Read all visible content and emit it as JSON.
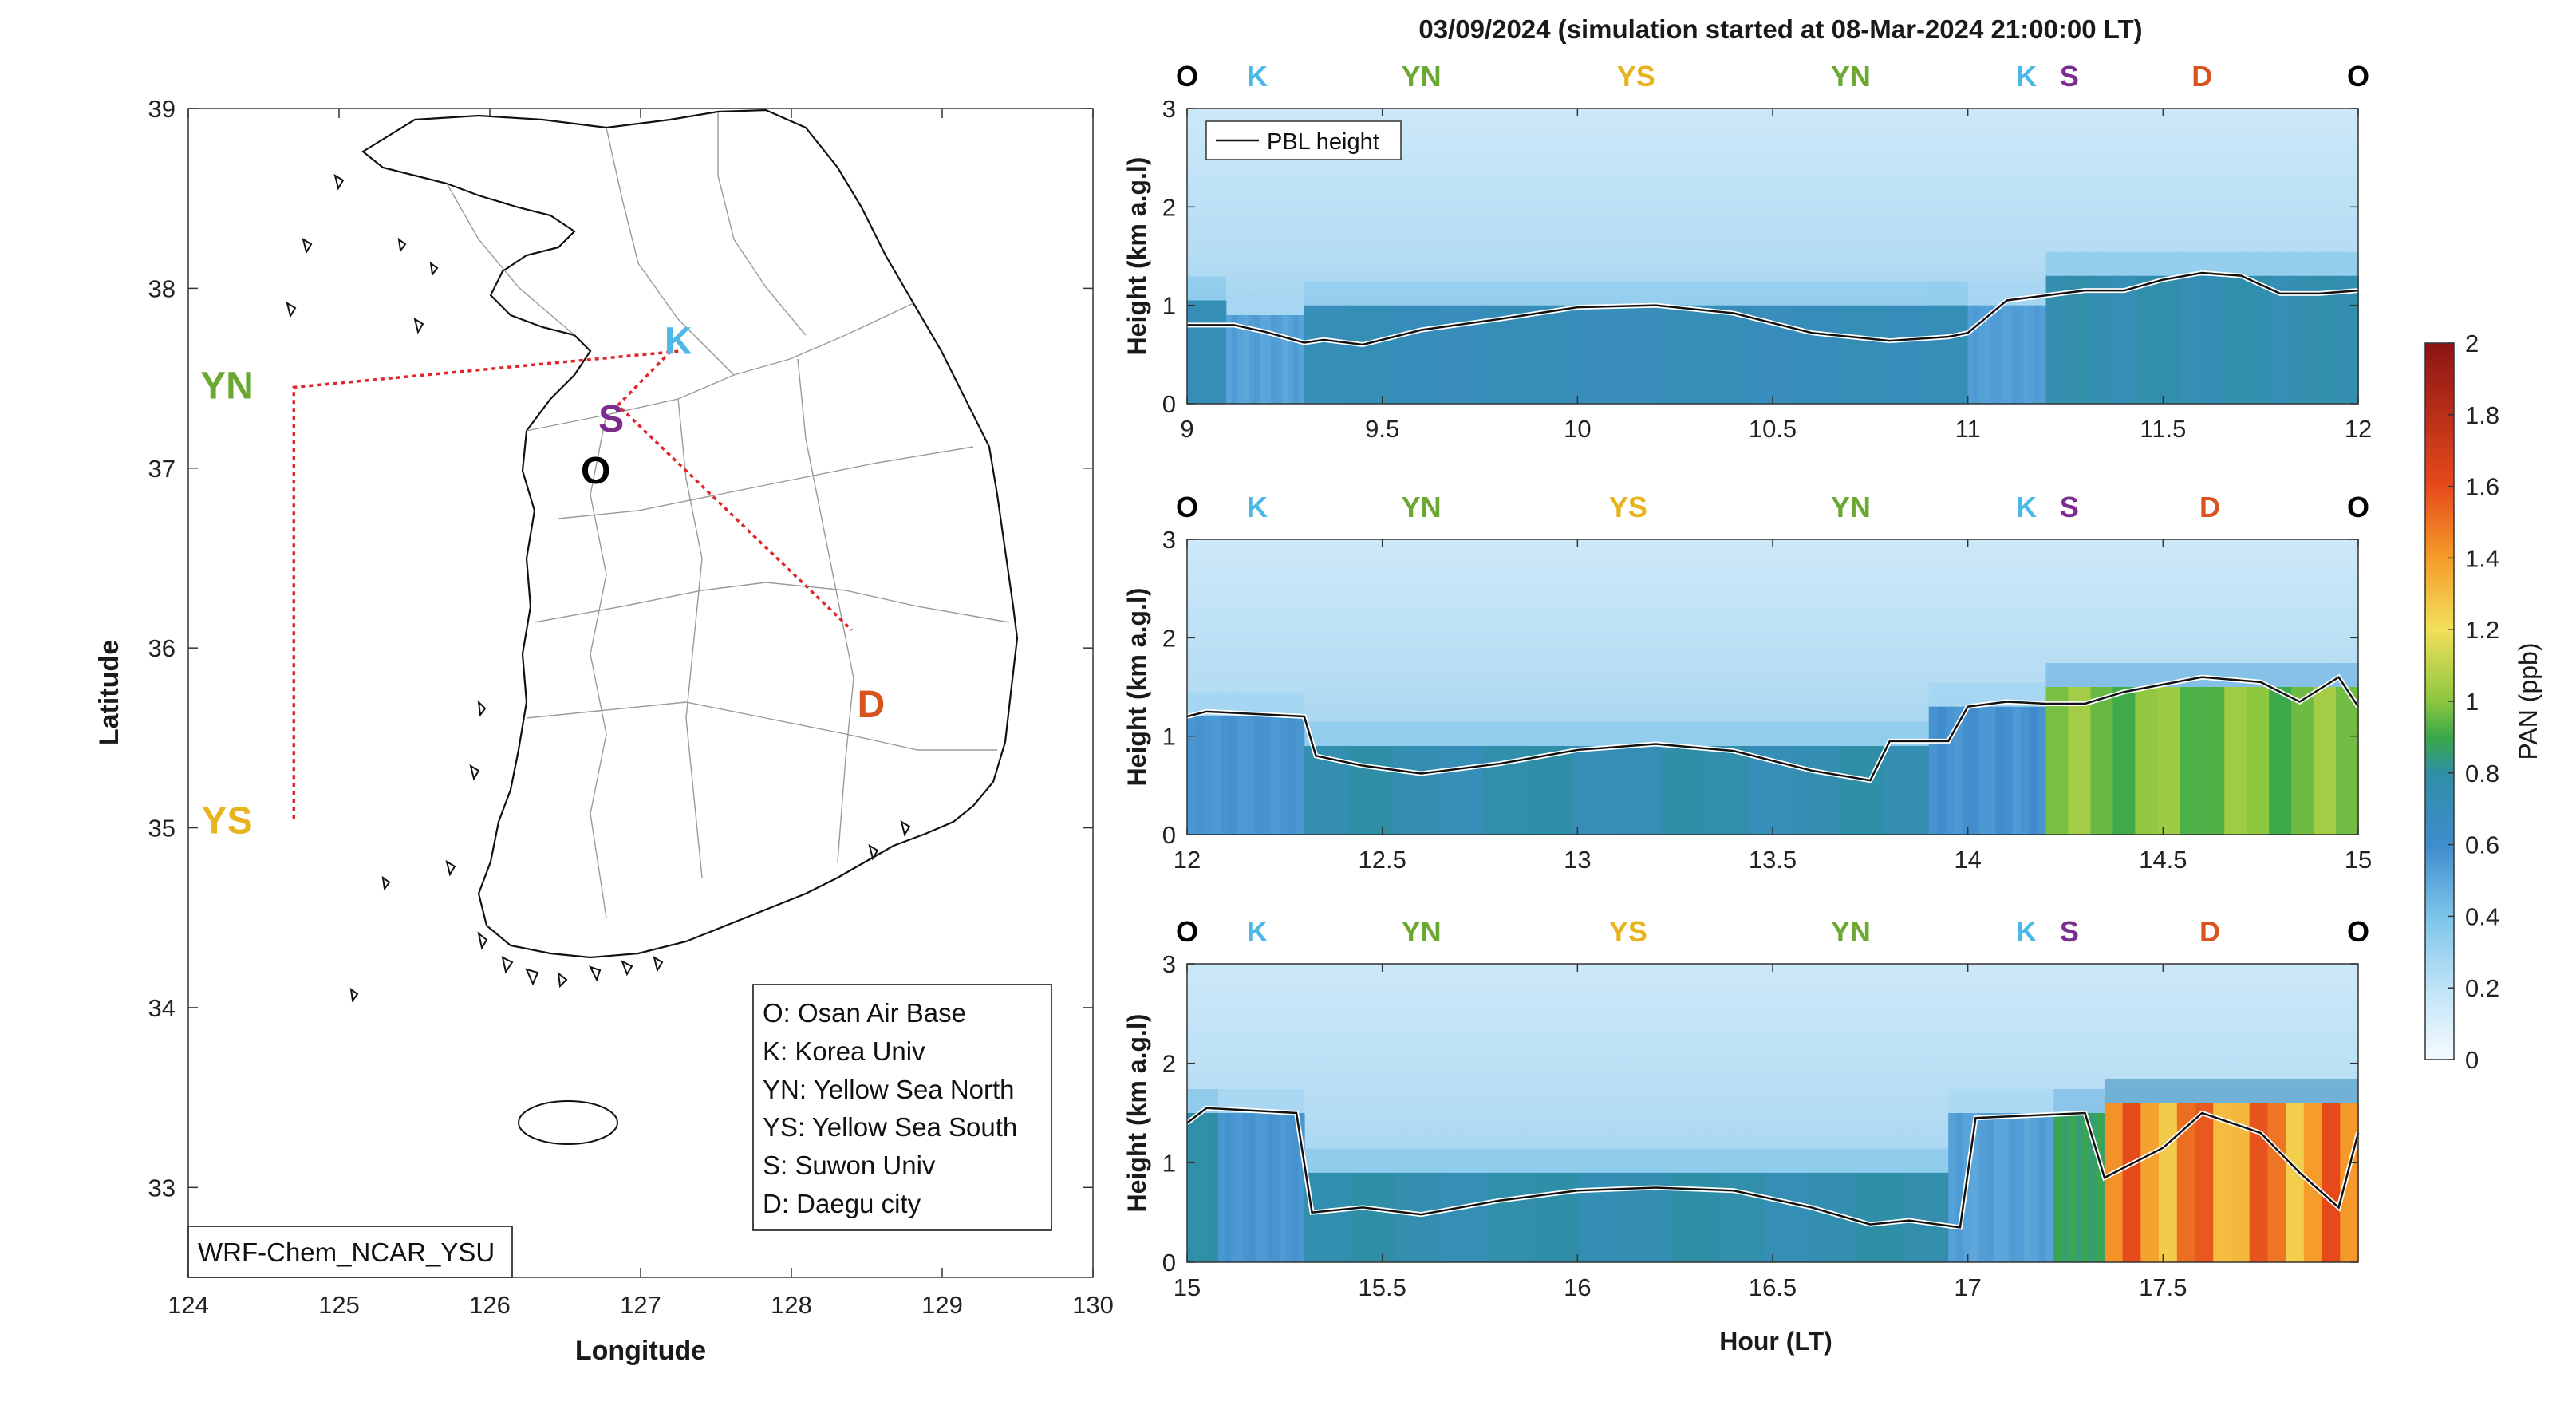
{
  "figure_title": "03/09/2024 (simulation started at 08-Mar-2024 21:00:00 LT)",
  "colors": {
    "O": "#000000",
    "K": "#4db8e8",
    "YN": "#6aa832",
    "YS": "#e8b31c",
    "S": "#7b2d8e",
    "D": "#d9531e",
    "route": "#e0262a"
  },
  "chart_data": [
    {
      "type": "map",
      "xlabel": "Longitude",
      "ylabel": "Latitude",
      "xlim": [
        124,
        130
      ],
      "ylim": [
        32.5,
        39
      ],
      "xticks": [
        "124",
        "125",
        "126",
        "127",
        "128",
        "129",
        "130"
      ],
      "yticks": [
        "33",
        "34",
        "35",
        "36",
        "37",
        "38",
        "39"
      ],
      "model_label": "WRF-Chem_NCAR_YSU",
      "sites": [
        {
          "code": "K",
          "lon": 127.25,
          "lat": 37.6
        },
        {
          "code": "S",
          "lon": 126.9,
          "lat": 37.3
        },
        {
          "code": "O",
          "lon": 126.85,
          "lat": 37.1
        },
        {
          "code": "YN",
          "lon": 124.5,
          "lat": 37.45
        },
        {
          "code": "YS",
          "lon": 124.5,
          "lat": 35.05
        },
        {
          "code": "D",
          "lon": 128.55,
          "lat": 35.8
        }
      ],
      "route": [
        [
          127.25,
          37.65
        ],
        [
          124.7,
          37.45
        ],
        [
          124.7,
          35.05
        ]
      ],
      "route2": [
        [
          127.2,
          37.65
        ],
        [
          126.85,
          37.35
        ],
        [
          128.4,
          36.1
        ]
      ],
      "legend": [
        "O: Osan Air Base",
        "K: Korea Univ",
        "YN: Yellow Sea North",
        "YS: Yellow Sea South",
        "S: Suwon Univ",
        "D: Daegu city"
      ]
    },
    {
      "type": "heatmap",
      "ylabel": "Height (km a.g.l)",
      "xlim": [
        9,
        12
      ],
      "ylim": [
        0,
        3
      ],
      "xticks": [
        "9",
        "9.5",
        "10",
        "10.5",
        "11",
        "11.5",
        "12"
      ],
      "yticks": [
        "0",
        "1",
        "2",
        "3"
      ],
      "site_marks": [
        {
          "code": "O",
          "x": 9.0
        },
        {
          "code": "K",
          "x": 9.18
        },
        {
          "code": "YN",
          "x": 9.6
        },
        {
          "code": "YS",
          "x": 10.15
        },
        {
          "code": "YN",
          "x": 10.7
        },
        {
          "code": "K",
          "x": 11.15
        },
        {
          "code": "S",
          "x": 11.26
        },
        {
          "code": "D",
          "x": 11.6
        },
        {
          "code": "O",
          "x": 12.0
        }
      ],
      "legend": [
        "PBL height"
      ],
      "pbl": {
        "x": [
          9,
          9.12,
          9.2,
          9.3,
          9.35,
          9.45,
          9.6,
          9.8,
          10.0,
          10.2,
          10.4,
          10.6,
          10.7,
          10.8,
          10.95,
          11.0,
          11.1,
          11.3,
          11.4,
          11.5,
          11.6,
          11.7,
          11.8,
          11.9,
          12.0
        ],
        "y": [
          0.8,
          0.8,
          0.73,
          0.62,
          0.65,
          0.6,
          0.75,
          0.86,
          0.98,
          1.0,
          0.92,
          0.72,
          0.68,
          0.64,
          0.68,
          0.72,
          1.05,
          1.15,
          1.15,
          1.26,
          1.33,
          1.3,
          1.12,
          1.12,
          1.15
        ]
      },
      "bands": [
        {
          "x": [
            9.0,
            9.1
          ],
          "low": 0.72,
          "high": 0.72,
          "top": 1.05
        },
        {
          "x": [
            9.1,
            9.3
          ],
          "low": 0.5,
          "high": 0.55,
          "top": 0.9
        },
        {
          "x": [
            9.3,
            10.9
          ],
          "low": 0.68,
          "high": 0.72,
          "top": 1.0
        },
        {
          "x": [
            10.9,
            11.0
          ],
          "low": 0.7,
          "high": 0.72,
          "top": 1.0
        },
        {
          "x": [
            11.0,
            11.2
          ],
          "low": 0.52,
          "high": 0.55,
          "top": 1.0
        },
        {
          "x": [
            11.2,
            12.0
          ],
          "low": 0.72,
          "high": 0.78,
          "top": 1.3
        }
      ]
    },
    {
      "type": "heatmap",
      "ylabel": "Height (km a.g.l)",
      "xlim": [
        12,
        15
      ],
      "ylim": [
        0,
        3
      ],
      "xticks": [
        "12",
        "12.5",
        "13",
        "13.5",
        "14",
        "14.5",
        "15"
      ],
      "yticks": [
        "0",
        "1",
        "2",
        "3"
      ],
      "site_marks": [
        {
          "code": "O",
          "x": 12.0
        },
        {
          "code": "K",
          "x": 12.18
        },
        {
          "code": "YN",
          "x": 12.6
        },
        {
          "code": "YS",
          "x": 13.13
        },
        {
          "code": "YN",
          "x": 13.7
        },
        {
          "code": "K",
          "x": 14.15
        },
        {
          "code": "S",
          "x": 14.26
        },
        {
          "code": "D",
          "x": 14.62
        },
        {
          "code": "O",
          "x": 15.0
        }
      ],
      "pbl": {
        "x": [
          12,
          12.05,
          12.3,
          12.33,
          12.45,
          12.6,
          12.8,
          13.0,
          13.2,
          13.4,
          13.6,
          13.75,
          13.8,
          13.95,
          14.0,
          14.1,
          14.2,
          14.3,
          14.4,
          14.6,
          14.75,
          14.85,
          14.95,
          15.0
        ],
        "y": [
          1.2,
          1.25,
          1.2,
          0.8,
          0.7,
          0.62,
          0.72,
          0.86,
          0.92,
          0.85,
          0.65,
          0.55,
          0.95,
          0.95,
          1.3,
          1.35,
          1.33,
          1.33,
          1.45,
          1.6,
          1.55,
          1.35,
          1.6,
          1.3
        ]
      },
      "bands": [
        {
          "x": [
            12.0,
            12.3
          ],
          "low": 0.55,
          "high": 0.58,
          "top": 1.2
        },
        {
          "x": [
            12.3,
            13.9
          ],
          "low": 0.7,
          "high": 0.8,
          "top": 0.9
        },
        {
          "x": [
            13.9,
            14.2
          ],
          "low": 0.55,
          "high": 0.6,
          "top": 1.3
        },
        {
          "x": [
            14.2,
            15.0
          ],
          "low": 0.9,
          "high": 1.05,
          "top": 1.5
        }
      ]
    },
    {
      "type": "heatmap",
      "ylabel": "Height (km a.g.l)",
      "xlabel": "Hour (LT)",
      "xlim": [
        15,
        18
      ],
      "ylim": [
        0,
        3
      ],
      "xticks": [
        "15",
        "15.5",
        "16",
        "16.5",
        "17",
        "17.5"
      ],
      "yticks": [
        "0",
        "1",
        "2",
        "3"
      ],
      "site_marks": [
        {
          "code": "O",
          "x": 15.0
        },
        {
          "code": "K",
          "x": 15.18
        },
        {
          "code": "YN",
          "x": 15.6
        },
        {
          "code": "YS",
          "x": 16.13
        },
        {
          "code": "YN",
          "x": 16.7
        },
        {
          "code": "K",
          "x": 17.15
        },
        {
          "code": "S",
          "x": 17.26
        },
        {
          "code": "D",
          "x": 17.62
        },
        {
          "code": "O",
          "x": 18.0
        }
      ],
      "pbl": {
        "x": [
          15,
          15.05,
          15.28,
          15.32,
          15.45,
          15.6,
          15.8,
          16.0,
          16.2,
          16.4,
          16.6,
          16.75,
          16.85,
          16.98,
          17.02,
          17.3,
          17.35,
          17.5,
          17.6,
          17.75,
          17.85,
          17.95,
          18.0
        ],
        "y": [
          1.4,
          1.55,
          1.5,
          0.5,
          0.55,
          0.48,
          0.62,
          0.72,
          0.75,
          0.72,
          0.55,
          0.38,
          0.42,
          0.35,
          1.45,
          1.5,
          0.85,
          1.15,
          1.5,
          1.3,
          0.9,
          0.55,
          1.3
        ]
      },
      "bands": [
        {
          "x": [
            15.0,
            15.08
          ],
          "low": 0.78,
          "high": 0.8,
          "top": 1.5
        },
        {
          "x": [
            15.08,
            15.3
          ],
          "low": 0.55,
          "high": 0.58,
          "top": 1.5
        },
        {
          "x": [
            15.3,
            16.95
          ],
          "low": 0.72,
          "high": 0.8,
          "top": 0.9
        },
        {
          "x": [
            16.95,
            17.22
          ],
          "low": 0.5,
          "high": 0.55,
          "top": 1.5
        },
        {
          "x": [
            17.22,
            17.35
          ],
          "low": 0.85,
          "high": 0.9,
          "top": 1.5
        },
        {
          "x": [
            17.35,
            18.0
          ],
          "low": 1.25,
          "high": 1.6,
          "top": 1.6
        }
      ]
    }
  ],
  "colorbar": {
    "label": "PAN (ppb)",
    "min": 0,
    "max": 2,
    "ticks": [
      "0",
      "0.2",
      "0.4",
      "0.6",
      "0.8",
      "1",
      "1.2",
      "1.4",
      "1.6",
      "1.8",
      "2"
    ]
  }
}
